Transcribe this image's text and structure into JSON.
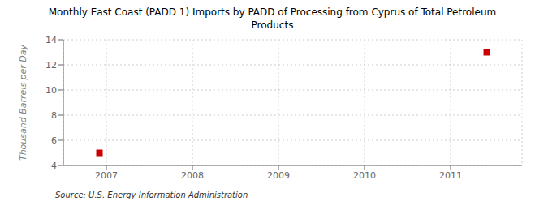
{
  "chart_data": {
    "type": "scatter",
    "title": "Monthly East Coast (PADD 1) Imports by PADD of Processing from Cyprus of Total Petroleum\nProducts",
    "ylabel": "Thousand Barrels per Day",
    "source": "Source: U.S. Energy Information Administration",
    "x": [
      2006.92,
      2011.42
    ],
    "values": [
      5.0,
      13.0
    ],
    "color": "#cc0000",
    "marker": "square",
    "xlim": [
      2006.5,
      2011.83
    ],
    "ylim": [
      4,
      14
    ],
    "xticks": [
      2007,
      2008,
      2009,
      2010,
      2011
    ],
    "yticks": [
      4,
      6,
      8,
      10,
      12,
      14
    ],
    "grid": true
  }
}
